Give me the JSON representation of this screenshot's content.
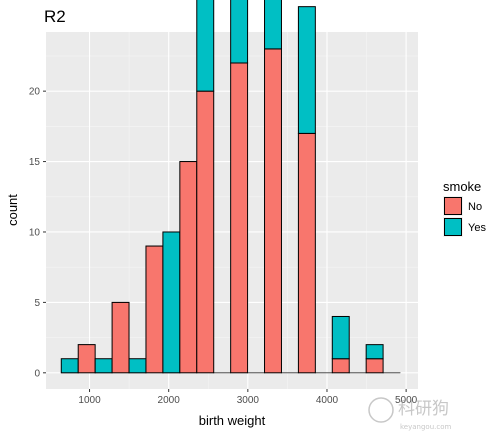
{
  "chart_data": {
    "type": "bar",
    "title": "R2",
    "xlabel": "birth weight",
    "ylabel": "count",
    "xlim": [
      450,
      5150
    ],
    "ylim": [
      -1.15,
      24.2
    ],
    "x_ticks": [
      1000,
      2000,
      3000,
      4000,
      5000
    ],
    "x_tick_labels": [
      "1000",
      "2000",
      "3000",
      "4000",
      "5000"
    ],
    "y_ticks": [
      0,
      5,
      10,
      15,
      20
    ],
    "y_tick_labels": [
      "0",
      "5",
      "10",
      "15",
      "20"
    ],
    "grid": true,
    "bin_width": 214,
    "bin_centers": [
      750,
      964,
      1178,
      1392,
      1606,
      1820,
      2034,
      2248,
      2462,
      2676,
      2890,
      3104,
      3318,
      3532,
      3746,
      3960,
      4174,
      4388,
      4602,
      4816
    ],
    "legend": {
      "title": "smoke",
      "position": "right"
    },
    "series": [
      {
        "name": "No",
        "color": "#F8766D",
        "values": [
          0,
          2,
          0,
          5,
          0,
          9,
          0,
          15,
          20,
          0,
          22,
          0,
          23,
          0,
          17,
          0,
          1,
          0,
          1,
          0
        ]
      },
      {
        "name": "Yes",
        "color": "#00BFC4",
        "values": [
          1,
          0,
          1,
          0,
          1,
          0,
          10,
          0,
          20,
          0,
          13,
          0,
          15,
          0,
          9,
          0,
          3,
          0,
          1,
          0
        ]
      }
    ]
  },
  "watermark": {
    "text": "科研狗",
    "subtext": "keyangou.com"
  }
}
